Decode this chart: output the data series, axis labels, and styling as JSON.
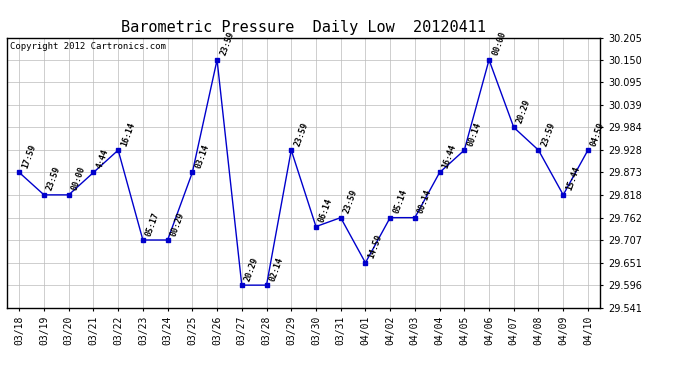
{
  "title": "Barometric Pressure  Daily Low  20120411",
  "copyright": "Copyright 2012 Cartronics.com",
  "x_labels": [
    "03/18",
    "03/19",
    "03/20",
    "03/21",
    "03/22",
    "03/23",
    "03/24",
    "03/25",
    "03/26",
    "03/27",
    "03/28",
    "03/29",
    "03/30",
    "03/31",
    "04/01",
    "04/02",
    "04/03",
    "04/04",
    "04/05",
    "04/06",
    "04/07",
    "04/08",
    "04/09",
    "04/10"
  ],
  "y_values": [
    29.873,
    29.818,
    29.818,
    29.873,
    29.928,
    29.707,
    29.707,
    29.873,
    30.15,
    29.596,
    29.596,
    29.928,
    29.74,
    29.762,
    29.651,
    29.762,
    29.762,
    29.873,
    29.928,
    30.15,
    29.984,
    29.928,
    29.818,
    29.928
  ],
  "point_labels": [
    "17:59",
    "23:59",
    "00:00",
    "4:44",
    "16:14",
    "05:17",
    "00:29",
    "03:14",
    "23:59",
    "20:29",
    "02:14",
    "23:59",
    "06:14",
    "23:59",
    "14:59",
    "05:14",
    "00:14",
    "16:44",
    "00:14",
    "00:00",
    "20:29",
    "23:59",
    "15:44",
    "04:59"
  ],
  "ylim_min": 29.541,
  "ylim_max": 30.205,
  "yticks": [
    29.541,
    29.596,
    29.651,
    29.707,
    29.762,
    29.818,
    29.873,
    29.928,
    29.984,
    30.039,
    30.095,
    30.15,
    30.205
  ],
  "line_color": "#0000cc",
  "marker_color": "#0000cc",
  "bg_color": "#ffffff",
  "grid_color": "#bbbbbb",
  "title_fontsize": 11,
  "tick_fontsize": 7,
  "annot_fontsize": 6,
  "copyright_fontsize": 6.5
}
